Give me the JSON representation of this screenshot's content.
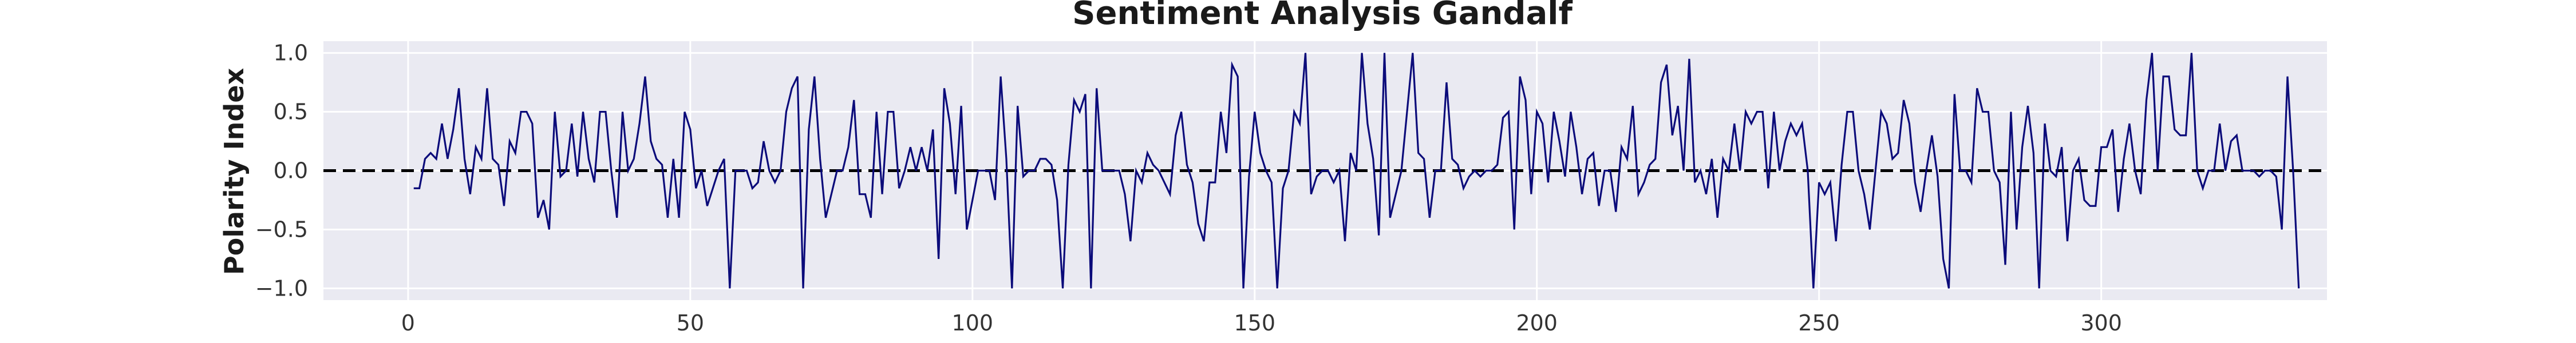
{
  "chart_data": {
    "type": "line",
    "title": "Sentiment Analysis Gandalf",
    "xlabel": "",
    "ylabel": "Polarity Index",
    "xlim": [
      -15,
      340
    ],
    "ylim": [
      -1.1,
      1.1
    ],
    "xticks": [
      0,
      50,
      100,
      150,
      200,
      250,
      300
    ],
    "yticks": [
      -1.0,
      -0.5,
      0.0,
      0.5,
      1.0
    ],
    "ytick_labels": [
      "−1.0",
      "−0.5",
      "0.0",
      "0.5",
      "1.0"
    ],
    "grid": true,
    "reference_line": {
      "y": 0.0,
      "style": "dashed",
      "color": "#000000"
    },
    "colors": {
      "line": "#0b0b7a",
      "plot_background": "#eaeaf2",
      "grid": "#ffffff"
    },
    "x_start": 1,
    "series": [
      {
        "values": [
          -0.15,
          -0.15,
          0.1,
          0.15,
          0.1,
          0.4,
          0.1,
          0.35,
          0.7,
          0.1,
          -0.2,
          0.2,
          0.1,
          0.7,
          0.1,
          0.05,
          -0.3,
          0.25,
          0.15,
          0.5,
          0.5,
          0.4,
          -0.4,
          -0.25,
          -0.5,
          0.5,
          -0.05,
          0.0,
          0.4,
          -0.05,
          0.5,
          0.1,
          -0.1,
          0.5,
          0.5,
          0.0,
          -0.4,
          0.5,
          0.0,
          0.1,
          0.4,
          0.8,
          0.25,
          0.1,
          0.05,
          -0.4,
          0.1,
          -0.4,
          0.5,
          0.35,
          -0.15,
          0.0,
          -0.3,
          -0.15,
          0.0,
          0.1,
          -1.0,
          0.0,
          0.0,
          0.0,
          -0.15,
          -0.1,
          0.25,
          0.0,
          -0.1,
          0.0,
          0.5,
          0.7,
          0.8,
          -1.0,
          0.35,
          0.8,
          0.1,
          -0.4,
          -0.2,
          0.0,
          0.0,
          0.2,
          0.6,
          -0.2,
          -0.2,
          -0.4,
          0.5,
          -0.2,
          0.5,
          0.5,
          -0.15,
          0.0,
          0.2,
          0.0,
          0.2,
          0.0,
          0.35,
          -0.75,
          0.7,
          0.4,
          -0.2,
          0.55,
          -0.5,
          -0.25,
          0.0,
          0.0,
          0.0,
          -0.25,
          0.8,
          0.1,
          -1.0,
          0.55,
          -0.05,
          0.0,
          0.0,
          0.1,
          0.1,
          0.05,
          -0.25,
          -1.0,
          0.05,
          0.6,
          0.5,
          0.65,
          -1.0,
          0.7,
          0.0,
          0.0,
          0.0,
          0.0,
          -0.2,
          -0.6,
          0.0,
          -0.1,
          0.15,
          0.05,
          0.0,
          -0.1,
          -0.2,
          0.3,
          0.5,
          0.05,
          -0.1,
          -0.45,
          -0.6,
          -0.1,
          -0.1,
          0.5,
          0.15,
          0.9,
          0.8,
          -1.0,
          -0.05,
          0.5,
          0.15,
          0.0,
          -0.1,
          -1.0,
          -0.15,
          0.0,
          0.5,
          0.4,
          1.0,
          -0.2,
          -0.05,
          0.0,
          0.0,
          -0.1,
          0.0,
          -0.6,
          0.15,
          0.0,
          1.0,
          0.4,
          0.1,
          -0.55,
          1.0,
          -0.4,
          -0.2,
          0.0,
          0.5,
          1.0,
          0.15,
          0.1,
          -0.4,
          0.0,
          0.0,
          0.75,
          0.1,
          0.05,
          -0.15,
          -0.05,
          0.0,
          -0.05,
          0.0,
          0.0,
          0.05,
          0.45,
          0.5,
          -0.5,
          0.8,
          0.6,
          -0.2,
          0.5,
          0.4,
          -0.1,
          0.5,
          0.25,
          -0.05,
          0.5,
          0.2,
          -0.2,
          0.1,
          0.15,
          -0.3,
          0.0,
          0.0,
          -0.35,
          0.2,
          0.1,
          0.55,
          -0.2,
          -0.1,
          0.05,
          0.1,
          0.75,
          0.9,
          0.3,
          0.55,
          0.0,
          0.95,
          -0.1,
          0.0,
          -0.2,
          0.1,
          -0.4,
          0.1,
          0.0,
          0.4,
          0.0,
          0.5,
          0.4,
          0.5,
          0.5,
          -0.15,
          0.5,
          0.0,
          0.25,
          0.4,
          0.3,
          0.4,
          0.0,
          -1.0,
          -0.1,
          -0.2,
          -0.1,
          -0.6,
          0.05,
          0.5,
          0.5,
          0.0,
          -0.2,
          -0.5,
          0.0,
          0.5,
          0.4,
          0.1,
          0.15,
          0.6,
          0.4,
          -0.1,
          -0.35,
          0.0,
          0.3,
          -0.05,
          -0.75,
          -1.0,
          0.65,
          0.0,
          0.0,
          -0.1,
          0.7,
          0.5,
          0.5,
          0.0,
          -0.1,
          -0.8,
          0.5,
          -0.5,
          0.2,
          0.55,
          0.15,
          -1.0,
          0.4,
          0.0,
          -0.05,
          0.2,
          -0.6,
          0.0,
          0.1,
          -0.25,
          -0.3,
          -0.3,
          0.2,
          0.2,
          0.35,
          -0.35,
          0.1,
          0.4,
          0.0,
          -0.2,
          0.6,
          1.0,
          0.0,
          0.8,
          0.8,
          0.35,
          0.3,
          0.3,
          1.0,
          0.0,
          -0.15,
          0.0,
          0.0,
          0.4,
          0.0,
          0.25,
          0.3,
          0.0,
          0.0,
          0.0,
          -0.05,
          0.0,
          0.0,
          -0.05,
          -0.5,
          0.8,
          0.0,
          -1.0
        ]
      }
    ]
  }
}
